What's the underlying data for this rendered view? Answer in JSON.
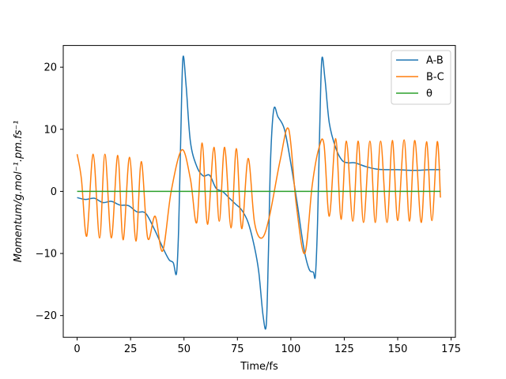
{
  "chart_data": {
    "type": "line",
    "title": "",
    "xlabel": "Time/fs",
    "ylabel": "Momentum/g.mol⁻¹.pm.fs⁻¹",
    "xlim": [
      -6.5,
      177
    ],
    "ylim": [
      -23.5,
      23.5
    ],
    "xticks": [
      0,
      25,
      50,
      75,
      100,
      125,
      150,
      175
    ],
    "yticks": [
      -20,
      -10,
      0,
      10,
      20
    ],
    "grid": false,
    "legend_position": "top-right",
    "series": [
      {
        "name": "A-B",
        "color": "#1f77b4",
        "x": [
          0,
          4,
          8,
          12,
          16,
          20,
          24,
          28,
          32,
          36,
          40,
          43,
          45,
          46.5,
          47.5,
          48.5,
          49.5,
          51,
          53,
          56,
          59,
          62,
          65,
          68,
          71,
          74,
          77,
          80,
          83,
          85,
          87,
          88.5,
          89.5,
          90.5,
          92,
          94,
          97,
          100,
          103,
          106,
          108.5,
          110.5,
          111.5,
          112.5,
          113.5,
          114.5,
          116,
          118,
          121,
          124,
          127,
          130,
          135,
          140,
          145,
          150,
          155,
          160,
          165,
          170
        ],
        "y": [
          -1,
          -1.3,
          -1.1,
          -1.8,
          -1.6,
          -2.2,
          -2.3,
          -3.3,
          -3.5,
          -6,
          -9,
          -11,
          -11.5,
          -13.2,
          -6,
          9,
          21.5,
          17,
          8,
          4,
          2.5,
          2.6,
          0.5,
          0,
          -1,
          -2,
          -3,
          -5,
          -9,
          -13,
          -20,
          -21.5,
          -10,
          5,
          13.2,
          12,
          10,
          4.5,
          -2,
          -9,
          -12.5,
          -13,
          -13.5,
          -5,
          10,
          21.3,
          18,
          11,
          7,
          5,
          4.6,
          4.6,
          4,
          3.6,
          3.5,
          3.5,
          3.4,
          3.4,
          3.5,
          3.5
        ]
      },
      {
        "name": "B-C",
        "color": "#ff7f0e",
        "x": [
          0,
          2,
          4.5,
          7.5,
          10.5,
          13,
          16,
          19,
          21.5,
          24.5,
          27.5,
          30,
          33,
          36.5,
          40,
          44,
          49,
          53,
          56,
          58.5,
          61,
          64,
          66.5,
          69,
          72,
          74.5,
          77,
          80,
          83,
          86.5,
          90,
          95,
          99,
          102.5,
          106.5,
          110,
          113,
          115.5,
          118,
          121,
          123.5,
          126,
          129,
          131.5,
          134,
          137,
          139.5,
          142,
          145,
          147.5,
          150,
          153,
          155.5,
          158,
          161,
          163.5,
          166,
          168.5,
          170
        ],
        "y": [
          6,
          2,
          -7.2,
          6,
          -7.5,
          6,
          -7.5,
          5.8,
          -7.8,
          5.5,
          -8,
          4.8,
          -7.5,
          -4,
          -9.6,
          0,
          6.7,
          2,
          -5,
          7.8,
          -5.3,
          7.1,
          -4.8,
          7.1,
          -5.9,
          6.9,
          -6,
          5.3,
          -5,
          -7.5,
          -4,
          5,
          10,
          -2,
          -10,
          1,
          6.8,
          7.6,
          -4,
          8.5,
          -4.5,
          8.1,
          -4.8,
          8.1,
          -5,
          8.1,
          -5,
          8.1,
          -5,
          8.2,
          -4.7,
          8.3,
          -4.8,
          8.2,
          -5,
          8,
          -4.7,
          8,
          -1
        ]
      },
      {
        "name": "θ",
        "color": "#2ca02c",
        "x": [
          0,
          170
        ],
        "y": [
          0,
          0
        ]
      }
    ]
  }
}
